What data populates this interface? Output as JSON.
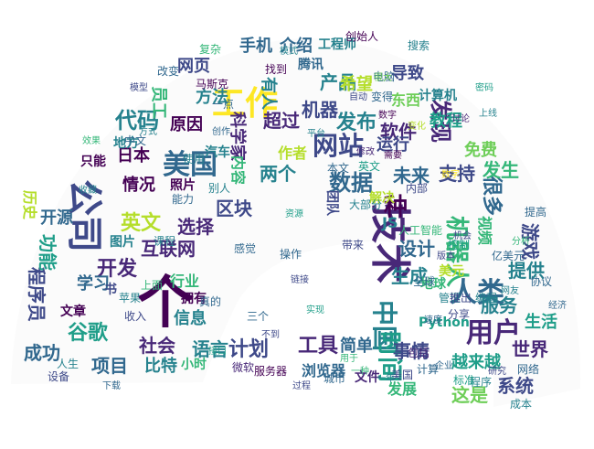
{
  "palette": {
    "background": "#ffffff",
    "shape": "#fbfbfb",
    "colors": [
      "#440154",
      "#482878",
      "#3e4989",
      "#31688e",
      "#26828e",
      "#1f9e89",
      "#35b779",
      "#6ece58",
      "#b5de2b",
      "#fde725"
    ]
  },
  "words": [
    {
      "text": "个"
    },
    {
      "text": "技术"
    },
    {
      "text": "工作"
    },
    {
      "text": "公司"
    },
    {
      "text": "用户"
    },
    {
      "text": "美国"
    },
    {
      "text": "网站"
    },
    {
      "text": "人类"
    },
    {
      "text": "中国"
    },
    {
      "text": "时间"
    },
    {
      "text": "数据"
    },
    {
      "text": "发现"
    },
    {
      "text": "英文"
    },
    {
      "text": "开发"
    },
    {
      "text": "代码"
    },
    {
      "text": "谷歌"
    },
    {
      "text": "机器人"
    },
    {
      "text": "很多"
    },
    {
      "text": "种"
    },
    {
      "text": "世界"
    },
    {
      "text": "系统"
    },
    {
      "text": "工具"
    },
    {
      "text": "计划"
    },
    {
      "text": "语言"
    },
    {
      "text": "产品"
    },
    {
      "text": "发布"
    },
    {
      "text": "软件"
    },
    {
      "text": "区块"
    },
    {
      "text": "程序员"
    },
    {
      "text": "功能"
    },
    {
      "text": "成功"
    },
    {
      "text": "项目"
    },
    {
      "text": "服务"
    },
    {
      "text": "提供"
    },
    {
      "text": "游戏"
    },
    {
      "text": "设计"
    },
    {
      "text": "生成"
    },
    {
      "text": "未来"
    },
    {
      "text": "支持"
    },
    {
      "text": "发生"
    },
    {
      "text": "社会"
    },
    {
      "text": "信息"
    },
    {
      "text": "比特"
    },
    {
      "text": "互联网"
    },
    {
      "text": "情况"
    },
    {
      "text": "日本"
    },
    {
      "text": "选择"
    },
    {
      "text": "事情"
    },
    {
      "text": "简单"
    },
    {
      "text": "这是"
    },
    {
      "text": "越来越"
    },
    {
      "text": "生活"
    },
    {
      "text": "免费"
    },
    {
      "text": "教程"
    },
    {
      "text": "运行"
    },
    {
      "text": "导致"
    },
    {
      "text": "希望"
    },
    {
      "text": "手机"
    },
    {
      "text": "介绍"
    },
    {
      "text": "网页"
    },
    {
      "text": "方法"
    },
    {
      "text": "员工"
    },
    {
      "text": "原因"
    },
    {
      "text": "超过"
    },
    {
      "text": "机器"
    },
    {
      "text": "两个"
    },
    {
      "text": "作者"
    },
    {
      "text": "科学家"
    },
    {
      "text": "内容"
    },
    {
      "text": "有人"
    },
    {
      "text": "浏览器"
    },
    {
      "text": "小时"
    },
    {
      "text": "文件"
    },
    {
      "text": "发展"
    },
    {
      "text": "Python"
    },
    {
      "text": "美元"
    },
    {
      "text": "地球"
    },
    {
      "text": "学习"
    },
    {
      "text": "开源"
    },
    {
      "text": "历史"
    },
    {
      "text": "图片"
    },
    {
      "text": "拥有"
    },
    {
      "text": "行业"
    },
    {
      "text": "照片"
    },
    {
      "text": "东西"
    },
    {
      "text": "地方"
    },
    {
      "text": "只能"
    },
    {
      "text": "工程师"
    },
    {
      "text": "计算机"
    },
    {
      "text": "JS"
    },
    {
      "text": "团队"
    },
    {
      "text": "解决"
    },
    {
      "text": "微软"
    },
    {
      "text": "服务器"
    },
    {
      "text": "收入"
    },
    {
      "text": "文章"
    },
    {
      "text": "计算"
    },
    {
      "text": "网络"
    },
    {
      "text": "程序"
    },
    {
      "text": "研究"
    },
    {
      "text": "人工智能"
    },
    {
      "text": "汽车"
    },
    {
      "text": "中文"
    },
    {
      "text": "别人"
    },
    {
      "text": "本文"
    },
    {
      "text": "英文"
    },
    {
      "text": "城市"
    },
    {
      "text": "大部分"
    },
    {
      "text": "马斯克"
    },
    {
      "text": "腾讯"
    },
    {
      "text": "找到"
    },
    {
      "text": "一点"
    },
    {
      "text": "变得"
    },
    {
      "text": "电脑"
    },
    {
      "text": "亿美元"
    },
    {
      "text": "视频"
    },
    {
      "text": "标准"
    },
    {
      "text": "管理"
    },
    {
      "text": "分享"
    },
    {
      "text": "成本"
    },
    {
      "text": "设备"
    },
    {
      "text": "课程"
    },
    {
      "text": "创始人"
    },
    {
      "text": "改变"
    },
    {
      "text": "复杂"
    },
    {
      "text": "能力"
    },
    {
      "text": "全球"
    },
    {
      "text": "苹果"
    },
    {
      "text": "书"
    },
    {
      "text": "使用"
    },
    {
      "text": "包括"
    },
    {
      "text": "推出"
    },
    {
      "text": "美国"
    },
    {
      "text": "模式"
    },
    {
      "text": "真的"
    },
    {
      "text": "编程"
    },
    {
      "text": "速度"
    },
    {
      "text": "链接"
    },
    {
      "text": "操作"
    },
    {
      "text": "资源"
    },
    {
      "text": "搜索"
    },
    {
      "text": "内部"
    },
    {
      "text": "一种"
    },
    {
      "text": "不到"
    },
    {
      "text": "三个"
    },
    {
      "text": "感觉"
    },
    {
      "text": "带来"
    },
    {
      "text": "修改"
    },
    {
      "text": "需要"
    },
    {
      "text": "自动"
    },
    {
      "text": "控制"
    },
    {
      "text": "讨论"
    },
    {
      "text": "上面"
    },
    {
      "text": "下载"
    },
    {
      "text": "网友"
    },
    {
      "text": "密码"
    },
    {
      "text": "模型"
    },
    {
      "text": "收藏"
    },
    {
      "text": "人生"
    },
    {
      "text": "提高"
    },
    {
      "text": "协议"
    },
    {
      "text": "数字"
    },
    {
      "text": "企业"
    },
    {
      "text": "效果"
    },
    {
      "text": "创作"
    },
    {
      "text": "平台"
    },
    {
      "text": "过程"
    },
    {
      "text": "接口"
    },
    {
      "text": "方式"
    },
    {
      "text": "经济"
    },
    {
      "text": "上线"
    },
    {
      "text": "一年"
    },
    {
      "text": "机会"
    },
    {
      "text": "分析"
    },
    {
      "text": "版本"
    },
    {
      "text": "实现"
    },
    {
      "text": "用于"
    },
    {
      "text": "很大"
    },
    {
      "text": "变化"
    },
    {
      "text": "数字"
    }
  ]
}
